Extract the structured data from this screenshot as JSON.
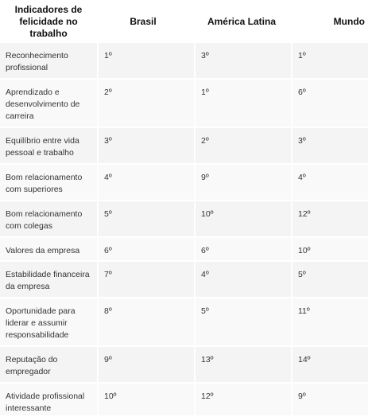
{
  "table": {
    "headers": [
      "Indicadores de felicidade no trabalho",
      "Brasil",
      "América Latina",
      "Mundo"
    ],
    "rows": [
      {
        "indicator": "Reconhecimento profissional",
        "brasil": "1º",
        "america_latina": "3º",
        "mundo": "1º"
      },
      {
        "indicator": "Aprendizado e desenvolvimento de carreira",
        "brasil": "2º",
        "america_latina": "1º",
        "mundo": "6º"
      },
      {
        "indicator": "Equilíbrio entre vida pessoal e trabalho",
        "brasil": "3º",
        "america_latina": "2º",
        "mundo": "3º"
      },
      {
        "indicator": "Bom relacionamento com superiores",
        "brasil": "4º",
        "america_latina": "9º",
        "mundo": "4º"
      },
      {
        "indicator": "Bom relacionamento com colegas",
        "brasil": "5º",
        "america_latina": "10º",
        "mundo": "12º"
      },
      {
        "indicator": "Valores da empresa",
        "brasil": "6º",
        "america_latina": "6º",
        "mundo": "10º"
      },
      {
        "indicator": "Estabilidade financeira da empresa",
        "brasil": "7º",
        "america_latina": "4º",
        "mundo": "5º"
      },
      {
        "indicator": "Oportunidade para liderar e assumir responsabilidade",
        "brasil": "8º",
        "america_latina": "5º",
        "mundo": "11º"
      },
      {
        "indicator": "Reputação do empregador",
        "brasil": "9º",
        "america_latina": "13º",
        "mundo": "14º"
      },
      {
        "indicator": "Atividade profissional interessante",
        "brasil": "10º",
        "america_latina": "12º",
        "mundo": "9º"
      }
    ]
  }
}
